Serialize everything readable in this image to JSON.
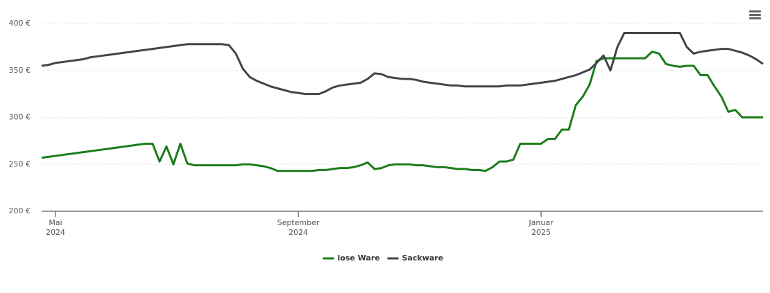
{
  "chart_data": {
    "type": "line",
    "categories": [
      null,
      null,
      [
        "Mai",
        "2024"
      ],
      null,
      null,
      null,
      null,
      null,
      null,
      null,
      null,
      null,
      null,
      null,
      null,
      null,
      null,
      null,
      null,
      null,
      null,
      null,
      null,
      null,
      null,
      null,
      null,
      null,
      null,
      null,
      null,
      null,
      null,
      null,
      null,
      null,
      null,
      [
        "September",
        "2024"
      ],
      null,
      null,
      null,
      null,
      null,
      null,
      null,
      null,
      null,
      null,
      null,
      null,
      null,
      null,
      null,
      null,
      null,
      null,
      null,
      null,
      null,
      null,
      null,
      null,
      null,
      null,
      null,
      null,
      null,
      null,
      null,
      null,
      null,
      null,
      [
        "Januar",
        "2025"
      ],
      null,
      null,
      null,
      null,
      null,
      null,
      null,
      null,
      null,
      null,
      null,
      null,
      null,
      null,
      null,
      null,
      null,
      null,
      null,
      null,
      null,
      null,
      null,
      null,
      null,
      null,
      null,
      null,
      null,
      null,
      null,
      null
    ],
    "series": [
      {
        "name": "lose Ware",
        "color": "#1a7d1a",
        "values": [
          257,
          258,
          259,
          260,
          261,
          262,
          263,
          264,
          265,
          266,
          267,
          268,
          269,
          270,
          271,
          272,
          272,
          253,
          269,
          250,
          272,
          251,
          249,
          249,
          249,
          249,
          249,
          249,
          249,
          250,
          250,
          249,
          248,
          246,
          243,
          243,
          243,
          243,
          243,
          243,
          244,
          244,
          245,
          246,
          246,
          247,
          249,
          252,
          245,
          246,
          249,
          250,
          250,
          250,
          249,
          249,
          248,
          247,
          247,
          246,
          245,
          245,
          244,
          244,
          243,
          247,
          253,
          253,
          255,
          272,
          272,
          272,
          272,
          277,
          277,
          287,
          287,
          313,
          322,
          335,
          360,
          363,
          363,
          363,
          363,
          363,
          363,
          363,
          370,
          368,
          357,
          355,
          354,
          355,
          355,
          345,
          345,
          333,
          322,
          306,
          308,
          300,
          300,
          300,
          300
        ]
      },
      {
        "name": "Sackware",
        "color": "#434348",
        "values": [
          355,
          356,
          358,
          359,
          360,
          361,
          362,
          364,
          365,
          366,
          367,
          368,
          369,
          370,
          371,
          372,
          373,
          374,
          375,
          376,
          377,
          378,
          378,
          378,
          378,
          378,
          378,
          377,
          368,
          352,
          343,
          339,
          336,
          333,
          331,
          329,
          327,
          326,
          325,
          325,
          325,
          328,
          332,
          334,
          335,
          336,
          337,
          341,
          347,
          346,
          343,
          342,
          341,
          341,
          340,
          338,
          337,
          336,
          335,
          334,
          334,
          333,
          333,
          333,
          333,
          333,
          333,
          334,
          334,
          334,
          335,
          336,
          337,
          338,
          339,
          341,
          343,
          345,
          348,
          351,
          358,
          366,
          350,
          375,
          390,
          390,
          390,
          390,
          390,
          390,
          390,
          390,
          390,
          375,
          368,
          370,
          371,
          372,
          373,
          373,
          371,
          369,
          366,
          362,
          357
        ]
      }
    ],
    "ylim": [
      200,
      400
    ],
    "yticks": [
      {
        "value": 200,
        "label": "200 €"
      },
      {
        "value": 250,
        "label": "250 €"
      },
      {
        "value": 300,
        "label": "300 €"
      },
      {
        "value": 350,
        "label": "350 €"
      },
      {
        "value": 400,
        "label": "400 €"
      }
    ],
    "grid": true,
    "legend": "bottom"
  }
}
